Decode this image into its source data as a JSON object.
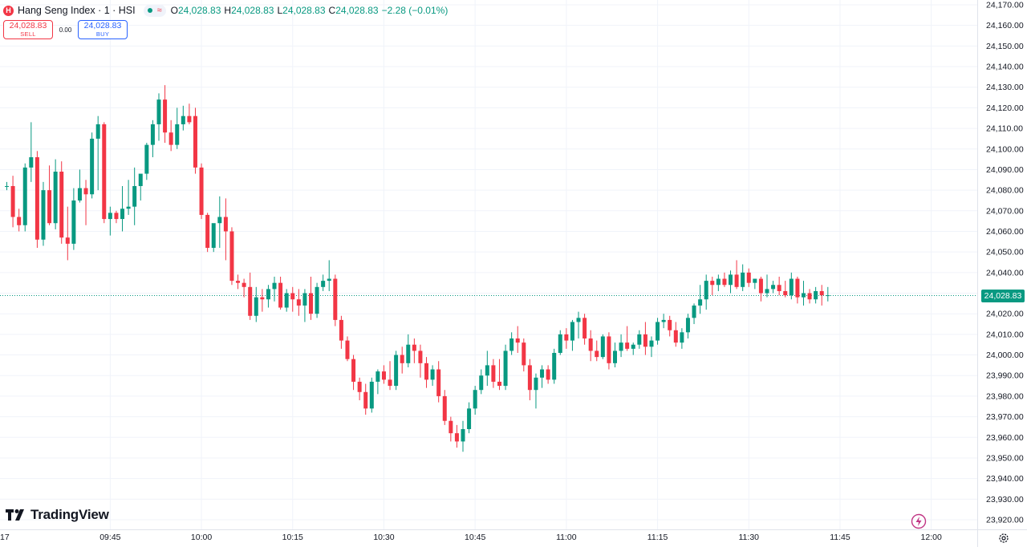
{
  "header": {
    "symbol_badge": "H",
    "title": "Hang Seng Index · 1 · HSI",
    "status_icon": "wave-icon",
    "ohlc": {
      "o_label": "O",
      "o_value": "24,028.83",
      "h_label": "H",
      "h_value": "24,028.83",
      "l_label": "L",
      "l_value": "24,028.83",
      "c_label": "C",
      "c_value": "24,028.83",
      "change": "−2.28 (−0.01%)"
    }
  },
  "trade": {
    "sell_price": "24,028.83",
    "sell_label": "SELL",
    "spread": "0.00",
    "buy_price": "24,028.83",
    "buy_label": "BUY"
  },
  "branding": {
    "logo_text": "TradingView"
  },
  "last_price_tag": "24,028.83",
  "colors": {
    "up": "#089981",
    "down": "#f23645",
    "grid": "#f0f3fa",
    "text": "#131722"
  },
  "chart_data": {
    "type": "candlestick",
    "title": "Hang Seng Index · 1 · HSI",
    "interval_minutes": 1,
    "x_ticks": [
      {
        "label": "09:45",
        "index": 17
      },
      {
        "label": "10:00",
        "index": 32
      },
      {
        "label": "10:15",
        "index": 47
      },
      {
        "label": "10:30",
        "index": 62
      },
      {
        "label": "10:45",
        "index": 77
      },
      {
        "label": "11:00",
        "index": 92
      },
      {
        "label": "11:15",
        "index": 107
      },
      {
        "label": "11:30",
        "index": 122
      },
      {
        "label": "11:45",
        "index": 137
      },
      {
        "label": "12:00",
        "index": 152
      }
    ],
    "x_left_partial_label": "17",
    "y_ticks": [
      "24,170.00",
      "24,160.00",
      "24,150.00",
      "24,140.00",
      "24,130.00",
      "24,120.00",
      "24,110.00",
      "24,100.00",
      "24,090.00",
      "24,080.00",
      "24,070.00",
      "24,060.00",
      "24,050.00",
      "24,040.00",
      "24,030.00",
      "24,020.00",
      "24,010.00",
      "24,000.00",
      "23,990.00",
      "23,980.00",
      "23,970.00",
      "23,960.00",
      "23,950.00",
      "23,940.00",
      "23,930.00",
      "23,920.00"
    ],
    "ylim": [
      23917,
      24172
    ],
    "last_price": 24028.83,
    "grid": true,
    "candles": [
      [
        24082,
        24084,
        24080,
        24082
      ],
      [
        24082,
        24087,
        24062,
        24067
      ],
      [
        24067,
        24071,
        24060,
        24063
      ],
      [
        24063,
        24093,
        24060,
        24091
      ],
      [
        24091,
        24113,
        24084,
        24096
      ],
      [
        24096,
        24099,
        24052,
        24056
      ],
      [
        24056,
        24084,
        24053,
        24080
      ],
      [
        24080,
        24092,
        24063,
        24064
      ],
      [
        24064,
        24095,
        24061,
        24089
      ],
      [
        24089,
        24094,
        24054,
        24057
      ],
      [
        24057,
        24072,
        24046,
        24054
      ],
      [
        24054,
        24081,
        24051,
        24075
      ],
      [
        24075,
        24090,
        24074,
        24081
      ],
      [
        24081,
        24085,
        24063,
        24078
      ],
      [
        24078,
        24108,
        24076,
        24105
      ],
      [
        24105,
        24116,
        24080,
        24112
      ],
      [
        24112,
        24113,
        24064,
        24066
      ],
      [
        24066,
        24072,
        24058,
        24069
      ],
      [
        24069,
        24070,
        24064,
        24066
      ],
      [
        24066,
        24082,
        24060,
        24071
      ],
      [
        24071,
        24085,
        24068,
        24072
      ],
      [
        24072,
        24091,
        24063,
        24082
      ],
      [
        24082,
        24087,
        24075,
        24088
      ],
      [
        24088,
        24103,
        24085,
        24102
      ],
      [
        24102,
        24114,
        24096,
        24112
      ],
      [
        24112,
        24127,
        24104,
        24124
      ],
      [
        24124,
        24131,
        24103,
        24108
      ],
      [
        24108,
        24114,
        24099,
        24102
      ],
      [
        24102,
        24120,
        24100,
        24112
      ],
      [
        24112,
        24121,
        24109,
        24116
      ],
      [
        24116,
        24122,
        24112,
        24113
      ],
      [
        24116,
        24120,
        24088,
        24091
      ],
      [
        24091,
        24093,
        24066,
        24068
      ],
      [
        24068,
        24069,
        24050,
        24052
      ],
      [
        24052,
        24063,
        24050,
        24064
      ],
      [
        24064,
        24077,
        24052,
        24067
      ],
      [
        24067,
        24076,
        24046,
        24060
      ],
      [
        24060,
        24062,
        24034,
        24036
      ],
      [
        24036,
        24039,
        24032,
        24035
      ],
      [
        24035,
        24037,
        24028,
        24033
      ],
      [
        24033,
        24040,
        24017,
        24019
      ],
      [
        24019,
        24033,
        24016,
        24028
      ],
      [
        24028,
        24032,
        24021,
        24027
      ],
      [
        24027,
        24034,
        24023,
        24032
      ],
      [
        24032,
        24038,
        24026,
        24035
      ],
      [
        24035,
        24038,
        24022,
        24023
      ],
      [
        24023,
        24032,
        24021,
        24030
      ],
      [
        24030,
        24033,
        24021,
        24027
      ],
      [
        24027,
        24032,
        24019,
        24024
      ],
      [
        24024,
        24032,
        24016,
        24030
      ],
      [
        24030,
        24038,
        24017,
        24020
      ],
      [
        24020,
        24035,
        24018,
        24033
      ],
      [
        24033,
        24039,
        24031,
        24036
      ],
      [
        24036,
        24046,
        24031,
        24037
      ],
      [
        24037,
        24039,
        24014,
        24017
      ],
      [
        24017,
        24019,
        24003,
        24007
      ],
      [
        24007,
        24009,
        23997,
        23998
      ],
      [
        23998,
        24000,
        23983,
        23987
      ],
      [
        23987,
        23989,
        23978,
        23982
      ],
      [
        23982,
        23986,
        23971,
        23974
      ],
      [
        23974,
        23989,
        23972,
        23987
      ],
      [
        23987,
        23993,
        23981,
        23992
      ],
      [
        23992,
        23995,
        23986,
        23988
      ],
      [
        23988,
        23997,
        23983,
        23985
      ],
      [
        23985,
        24002,
        23983,
        24000
      ],
      [
        24000,
        24004,
        23991,
        23996
      ],
      [
        23996,
        24010,
        23994,
        24005
      ],
      [
        24005,
        24008,
        23996,
        24002
      ],
      [
        24002,
        24005,
        23989,
        23996
      ],
      [
        23996,
        23999,
        23984,
        23988
      ],
      [
        23988,
        23995,
        23985,
        23993
      ],
      [
        23993,
        23997,
        23977,
        23980
      ],
      [
        23980,
        23983,
        23966,
        23968
      ],
      [
        23968,
        23970,
        23958,
        23962
      ],
      [
        23962,
        23966,
        23955,
        23958
      ],
      [
        23958,
        23968,
        23953,
        23964
      ],
      [
        23964,
        23977,
        23962,
        23974
      ],
      [
        23974,
        23985,
        23971,
        23983
      ],
      [
        23983,
        23993,
        23981,
        23990
      ],
      [
        23990,
        24002,
        23985,
        23995
      ],
      [
        23995,
        23998,
        23984,
        23987
      ],
      [
        23987,
        23998,
        23983,
        23985
      ],
      [
        23985,
        24005,
        23983,
        24002
      ],
      [
        24002,
        24011,
        24000,
        24008
      ],
      [
        24008,
        24014,
        24001,
        24006
      ],
      [
        24006,
        24008,
        23992,
        23995
      ],
      [
        23995,
        23998,
        23978,
        23983
      ],
      [
        23983,
        23991,
        23974,
        23989
      ],
      [
        23989,
        23995,
        23984,
        23993
      ],
      [
        23993,
        23995,
        23986,
        23988
      ],
      [
        23988,
        24003,
        23986,
        24001
      ],
      [
        24001,
        24012,
        24000,
        24010
      ],
      [
        24010,
        24013,
        24003,
        24007
      ],
      [
        24007,
        24017,
        24002,
        24016
      ],
      [
        24016,
        24021,
        24008,
        24018
      ],
      [
        24018,
        24020,
        24005,
        24008
      ],
      [
        24008,
        24012,
        23997,
        24002
      ],
      [
        24002,
        24007,
        23997,
        23999
      ],
      [
        23999,
        24010,
        23998,
        24009
      ],
      [
        24009,
        24011,
        23993,
        23996
      ],
      [
        23996,
        24006,
        23994,
        24002
      ],
      [
        24002,
        24010,
        23999,
        24006
      ],
      [
        24006,
        24014,
        24002,
        24003
      ],
      [
        24003,
        24006,
        24000,
        24005
      ],
      [
        24005,
        24012,
        24003,
        24010
      ],
      [
        24010,
        24016,
        24000,
        24004
      ],
      [
        24004,
        24009,
        23999,
        24007
      ],
      [
        24007,
        24018,
        24005,
        24016
      ],
      [
        24016,
        24020,
        24013,
        24017
      ],
      [
        24017,
        24019,
        24009,
        24012
      ],
      [
        24012,
        24016,
        24004,
        24006
      ],
      [
        24006,
        24013,
        24003,
        24011
      ],
      [
        24011,
        24020,
        24008,
        24018
      ],
      [
        24018,
        24025,
        24015,
        24024
      ],
      [
        24024,
        24034,
        24020,
        24027
      ],
      [
        24027,
        24039,
        24022,
        24036
      ],
      [
        24036,
        24038,
        24029,
        24034
      ],
      [
        24034,
        24039,
        24031,
        24037
      ],
      [
        24037,
        24040,
        24033,
        24034
      ],
      [
        24034,
        24041,
        24030,
        24039
      ],
      [
        24039,
        24046,
        24032,
        24033
      ],
      [
        24033,
        24044,
        24031,
        24040
      ],
      [
        24040,
        24042,
        24033,
        24035
      ],
      [
        24035,
        24037,
        24032,
        24037
      ],
      [
        24037,
        24038,
        24026,
        24030
      ],
      [
        24030,
        24039,
        24028,
        24032
      ],
      [
        24032,
        24036,
        24030,
        24034
      ],
      [
        24034,
        24038,
        24029,
        24031
      ],
      [
        24031,
        24036,
        24028,
        24029
      ],
      [
        24029,
        24040,
        24027,
        24037
      ],
      [
        24037,
        24038,
        24025,
        24028
      ],
      [
        24028,
        24036,
        24024,
        24030
      ],
      [
        24030,
        24032,
        24025,
        24027
      ],
      [
        24027,
        24033,
        24025,
        24031
      ],
      [
        24031,
        24034,
        24024,
        24029
      ],
      [
        24029,
        24033,
        24026,
        24029
      ]
    ]
  }
}
